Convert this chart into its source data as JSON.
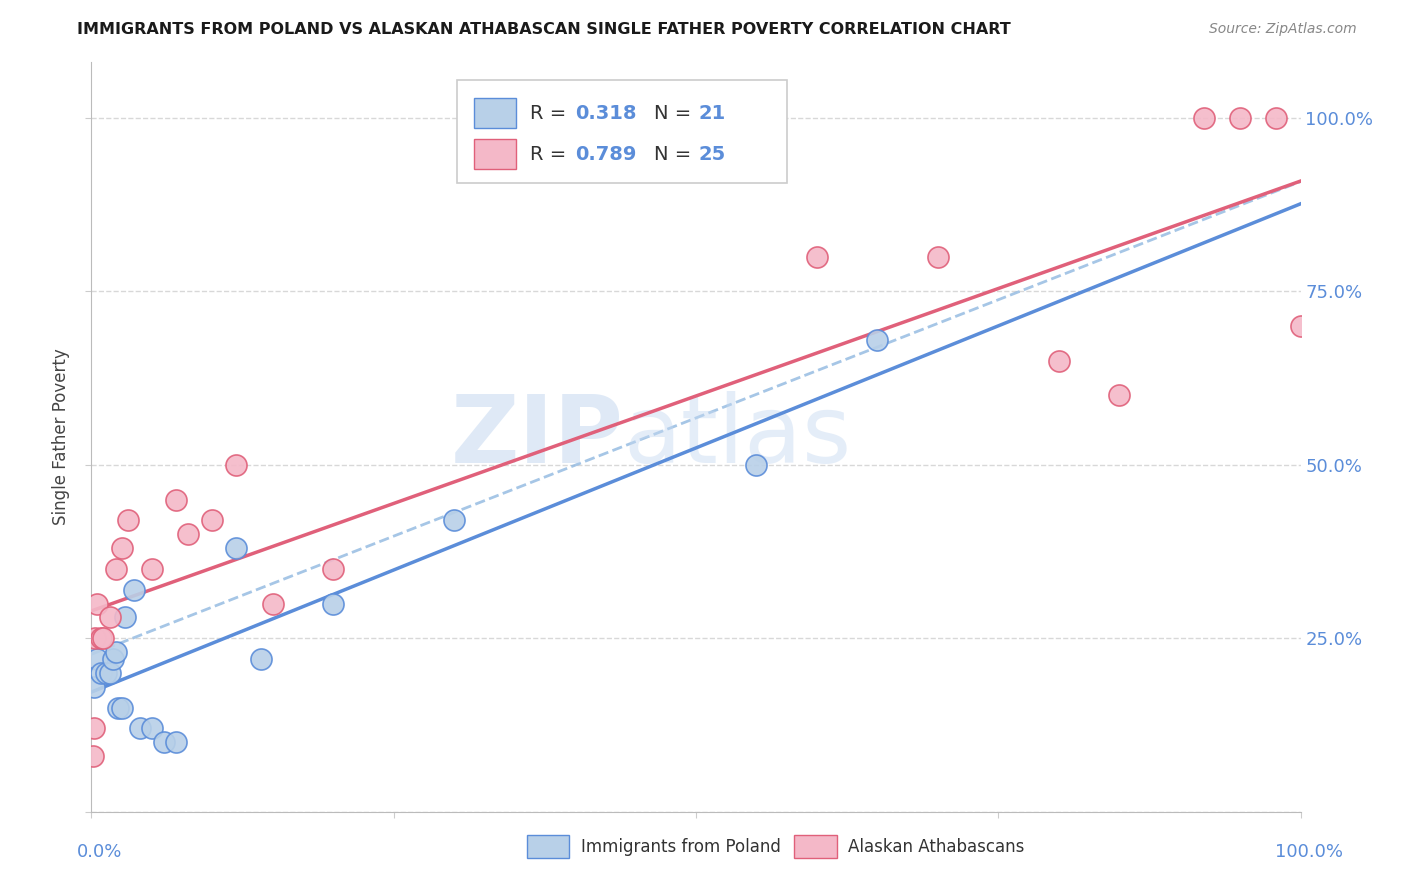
{
  "title": "IMMIGRANTS FROM POLAND VS ALASKAN ATHABASCAN SINGLE FATHER POVERTY CORRELATION CHART",
  "source": "Source: ZipAtlas.com",
  "ylabel": "Single Father Poverty",
  "legend_1_label": "Immigrants from Poland",
  "legend_2_label": "Alaskan Athabascans",
  "R_blue": 0.318,
  "N_blue": 21,
  "R_pink": 0.789,
  "N_pink": 25,
  "blue_color": "#b8d0e8",
  "pink_color": "#f4b8c8",
  "blue_line_color": "#5b8dd9",
  "pink_line_color": "#e0607a",
  "blue_dash_color": "#90b8e0",
  "blue_x": [
    0.2,
    0.5,
    0.8,
    1.2,
    1.5,
    1.8,
    2.0,
    2.2,
    2.5,
    2.8,
    3.5,
    4.0,
    5.0,
    6.0,
    7.0,
    12.0,
    14.0,
    20.0,
    30.0,
    55.0,
    65.0
  ],
  "blue_y": [
    18.0,
    22.0,
    20.0,
    20.0,
    20.0,
    22.0,
    23.0,
    15.0,
    15.0,
    28.0,
    32.0,
    12.0,
    12.0,
    10.0,
    10.0,
    38.0,
    22.0,
    30.0,
    42.0,
    50.0,
    68.0
  ],
  "pink_x": [
    0.1,
    0.2,
    0.3,
    0.5,
    0.8,
    1.0,
    1.5,
    2.0,
    2.5,
    3.0,
    5.0,
    7.0,
    8.0,
    10.0,
    12.0,
    15.0,
    20.0,
    60.0,
    70.0,
    80.0,
    85.0,
    92.0,
    95.0,
    98.0,
    100.0
  ],
  "pink_y": [
    8.0,
    12.0,
    25.0,
    30.0,
    25.0,
    25.0,
    28.0,
    35.0,
    38.0,
    42.0,
    35.0,
    45.0,
    40.0,
    42.0,
    50.0,
    30.0,
    35.0,
    80.0,
    80.0,
    65.0,
    60.0,
    100.0,
    100.0,
    100.0,
    70.0
  ],
  "background_color": "#ffffff",
  "grid_color": "#d8d8d8"
}
